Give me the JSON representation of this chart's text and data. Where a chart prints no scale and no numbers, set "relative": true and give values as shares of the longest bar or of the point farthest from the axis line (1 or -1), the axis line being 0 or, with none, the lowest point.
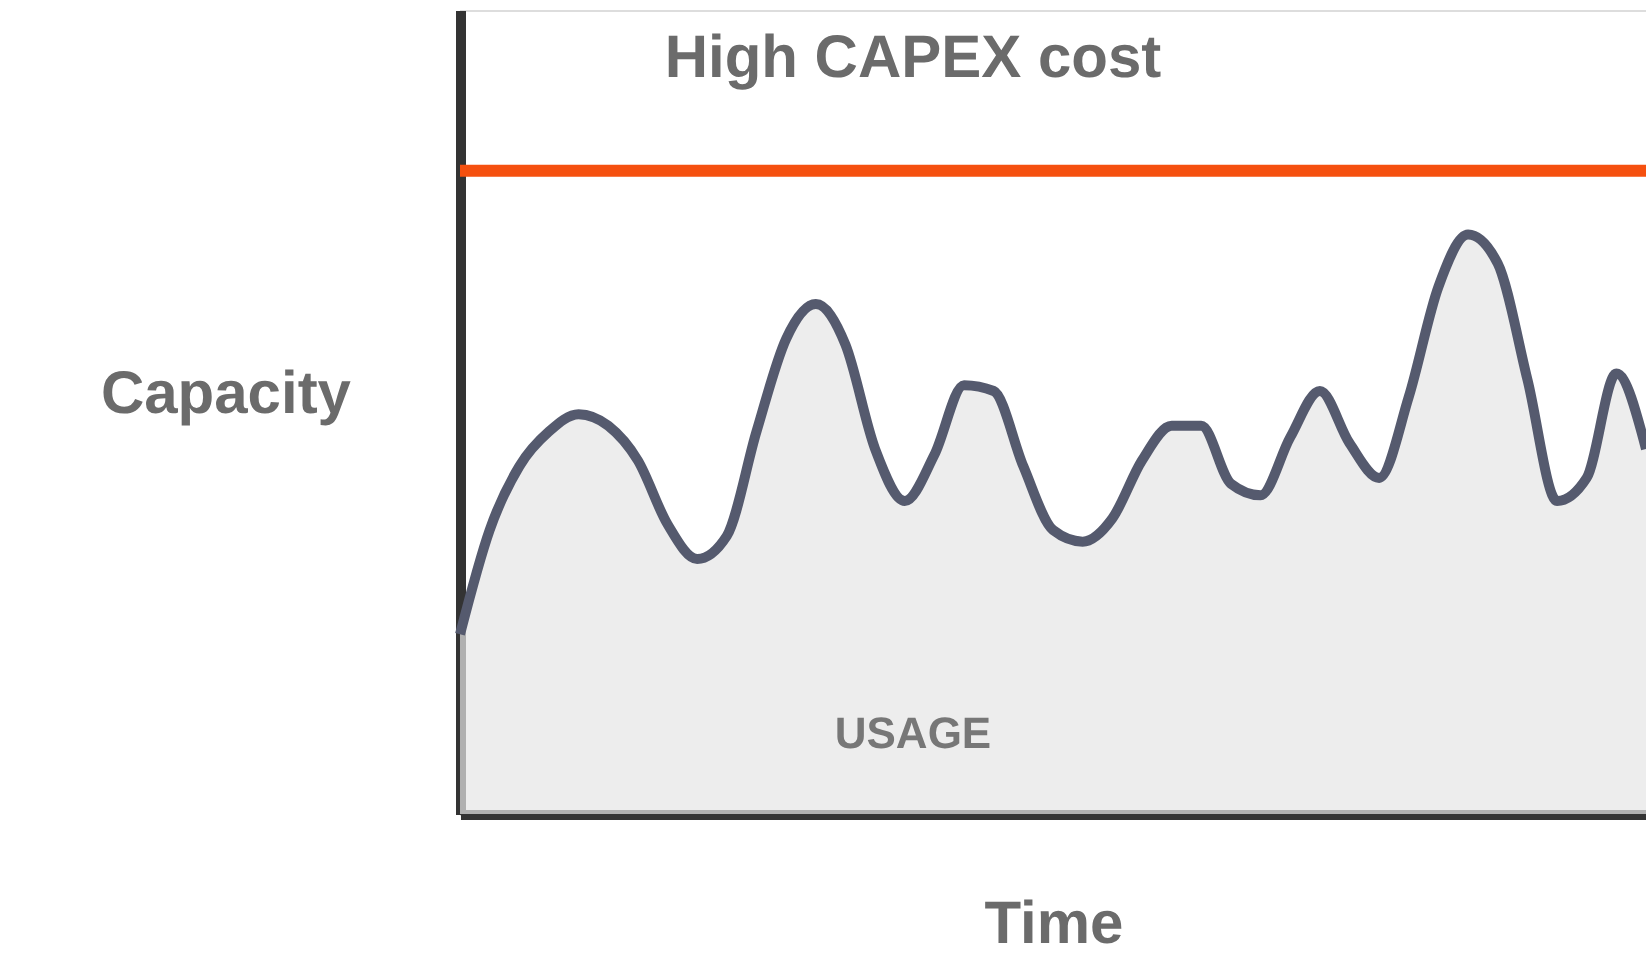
{
  "chart_data": {
    "type": "area",
    "relative": true,
    "xlabel": "Time",
    "ylabel": "Capacity",
    "categories": [
      null,
      null,
      null,
      null,
      null,
      null,
      null,
      null,
      null,
      null,
      null,
      null,
      null,
      null,
      null,
      null,
      null,
      null,
      null,
      null,
      null,
      null,
      null,
      null,
      null,
      null,
      null,
      null,
      null,
      null,
      null,
      null,
      null,
      null,
      null,
      null,
      null,
      null,
      null,
      null,
      null
    ],
    "series": [
      {
        "color": "#555a6e",
        "values": [
          0.31,
          0.49,
          0.6,
          0.66,
          0.69,
          0.67,
          0.61,
          0.5,
          0.44,
          0.48,
          0.66,
          0.82,
          0.88,
          0.81,
          0.63,
          0.54,
          0.62,
          0.74,
          0.73,
          0.6,
          0.49,
          0.47,
          0.51,
          0.61,
          0.67,
          0.67,
          0.57,
          0.55,
          0.65,
          0.73,
          0.64,
          0.58,
          0.72,
          0.91,
          1.0,
          0.95,
          0.75,
          0.54,
          0.58,
          0.76,
          0.63
        ]
      }
    ],
    "ref_lines": [
      {
        "axis": "y",
        "value": 1.11,
        "label": "High CAPEX cost",
        "color": "#f5500f"
      }
    ],
    "annotations": [
      "USAGE"
    ],
    "grid": false
  }
}
